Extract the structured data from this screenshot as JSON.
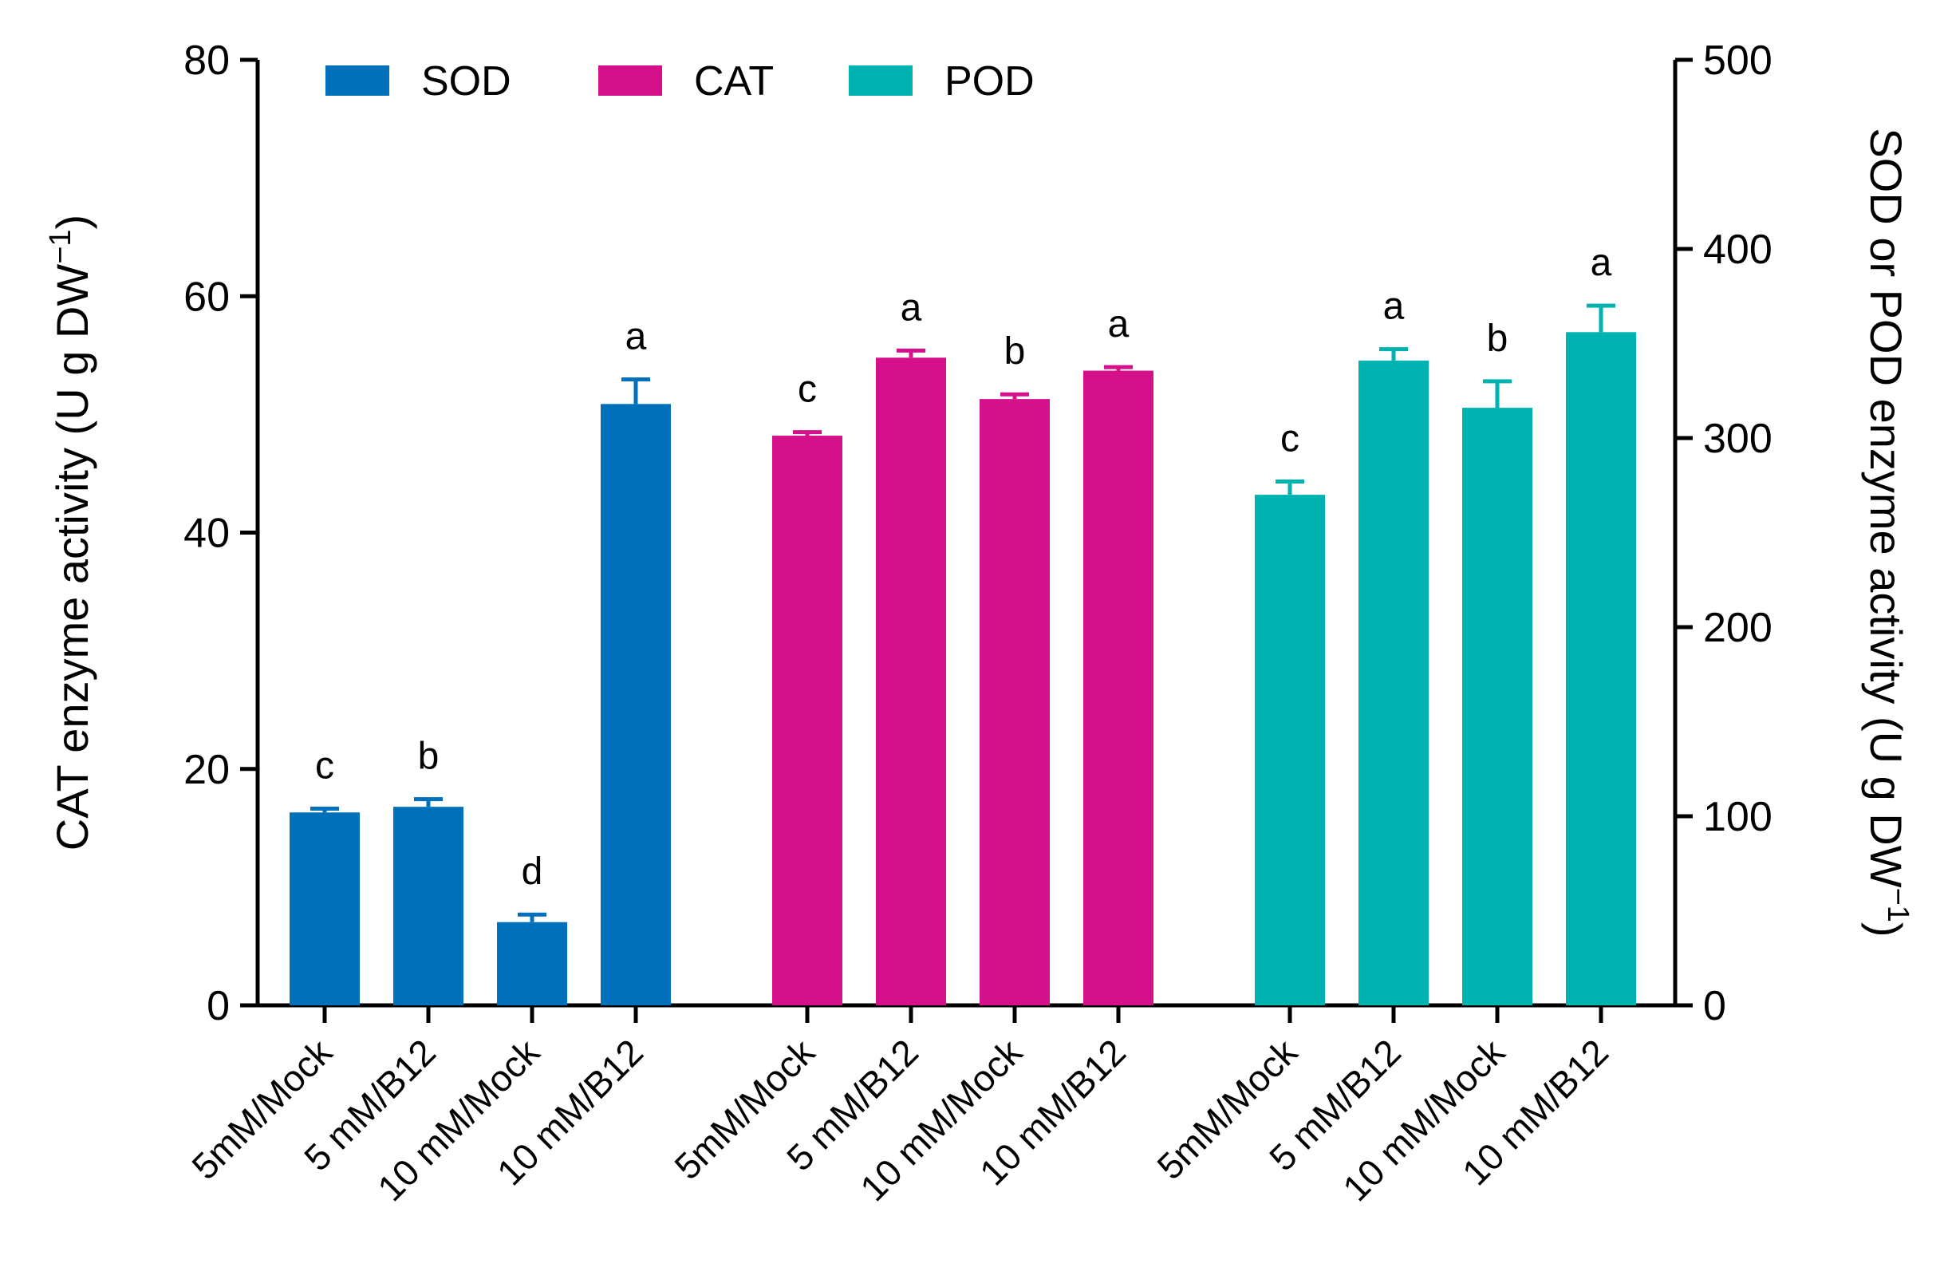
{
  "chart_data": {
    "type": "bar",
    "title": "",
    "xlabel": "",
    "ylabel_left": "CAT enzyme activity (U g DW",
    "ylabel_left_sup": "−1",
    "ylabel_left_close": ")",
    "ylabel_right": "SOD or POD enzyme activity (U g DW",
    "ylabel_right_sup": "−1",
    "ylabel_right_close": ")",
    "ylim_left": [
      0,
      80
    ],
    "yticks_left": [
      0,
      20,
      40,
      60,
      80
    ],
    "ylim_right": [
      0,
      500
    ],
    "yticks_right": [
      0,
      100,
      200,
      300,
      400,
      500
    ],
    "grid": false,
    "legend_position": "top-left",
    "legend": [
      {
        "name": "SOD",
        "color": "#0070BB"
      },
      {
        "name": "CAT",
        "color": "#D4108A"
      },
      {
        "name": "POD",
        "color": "#00B3B0"
      }
    ],
    "series": [
      {
        "name": "SOD",
        "axis": "right",
        "color": "#0070BB",
        "categories": [
          "5mM/Mock",
          "5 mM/B12",
          "10 mM/Mock",
          "10 mM/B12"
        ],
        "values": [
          102,
          105,
          44,
          318
        ],
        "errors": [
          2,
          4,
          4,
          13
        ],
        "significance": [
          "c",
          "b",
          "d",
          "a"
        ]
      },
      {
        "name": "CAT",
        "axis": "left",
        "color": "#D4108A",
        "categories": [
          "5mM/Mock",
          "5 mM/B12",
          "10 mM/Mock",
          "10 mM/B12"
        ],
        "values": [
          48.2,
          54.8,
          51.3,
          53.7
        ],
        "errors": [
          0.3,
          0.6,
          0.4,
          0.3
        ],
        "significance": [
          "c",
          "a",
          "b",
          "a"
        ]
      },
      {
        "name": "POD",
        "axis": "right",
        "color": "#00B3B0",
        "categories": [
          "5mM/Mock",
          "5 mM/B12",
          "10 mM/Mock",
          "10 mM/B12"
        ],
        "values": [
          270,
          341,
          316,
          356
        ],
        "errors": [
          7,
          6,
          14,
          14
        ],
        "significance": [
          "c",
          "a",
          "b",
          "a"
        ]
      }
    ]
  }
}
